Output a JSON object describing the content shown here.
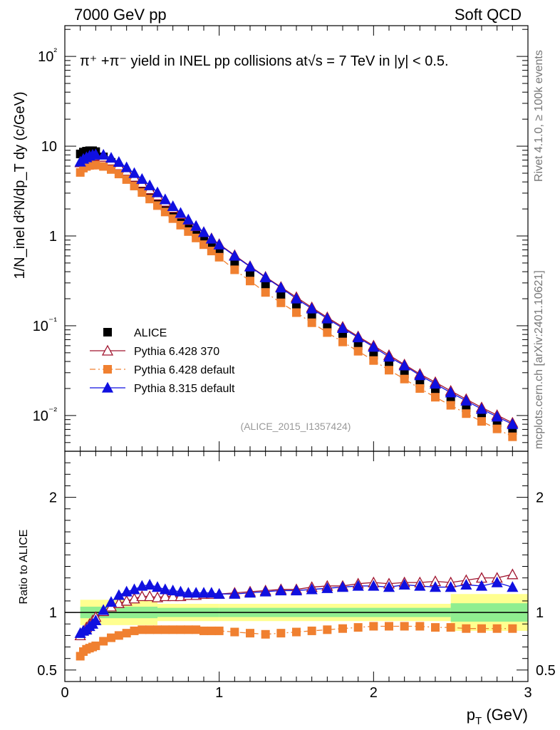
{
  "header": {
    "left": "7000 GeV pp",
    "right": "Soft QCD"
  },
  "side_labels": {
    "rivet": "Rivet 4.1.0, ≥ 100k events",
    "mcplots": "mcplots.cern.ch [arXiv:2401.10621]"
  },
  "chart_data": [
    {
      "type": "scatter",
      "panel": "main",
      "title": "π⁺ +π⁻ yield in INEL pp collisions at√s = 7 TeV in |y| < 0.5.",
      "ylabel": "1/N_inel d²N/dp_T dy (c/GeV)",
      "xlabel": "p_T (GeV)",
      "xlim": [
        0,
        3
      ],
      "ylim": [
        0.004,
        220
      ],
      "yscale": "log",
      "x_ticks": [
        "0",
        "1",
        "2",
        "3"
      ],
      "y_ticks": [
        "10⁻²",
        "10⁻¹",
        "1",
        "10",
        "10²"
      ],
      "watermark": "(ALICE_2015_I1357424)",
      "legend_position": "middle-left",
      "x": [
        0.1,
        0.12,
        0.14,
        0.16,
        0.18,
        0.2,
        0.25,
        0.3,
        0.35,
        0.4,
        0.45,
        0.5,
        0.55,
        0.6,
        0.65,
        0.7,
        0.75,
        0.8,
        0.85,
        0.9,
        0.95,
        1.0,
        1.1,
        1.2,
        1.3,
        1.4,
        1.5,
        1.6,
        1.7,
        1.8,
        1.9,
        2.0,
        2.1,
        2.2,
        2.3,
        2.4,
        2.5,
        2.6,
        2.7,
        2.8,
        2.9
      ],
      "series": [
        {
          "name": "ALICE",
          "marker": "square",
          "color": "#000000",
          "line": "none",
          "values": [
            8.2,
            8.6,
            8.8,
            8.9,
            8.9,
            8.7,
            7.6,
            6.6,
            5.7,
            4.9,
            4.1,
            3.5,
            2.95,
            2.5,
            2.12,
            1.8,
            1.53,
            1.3,
            1.1,
            0.94,
            0.8,
            0.69,
            0.51,
            0.385,
            0.29,
            0.22,
            0.168,
            0.128,
            0.099,
            0.077,
            0.06,
            0.047,
            0.037,
            0.029,
            0.023,
            0.0185,
            0.015,
            0.0122,
            0.01,
            0.0083,
            0.0068
          ]
        },
        {
          "name": "Pythia 6.428 370",
          "marker": "open-triangle",
          "color": "#a0142f",
          "line": "solid",
          "values": [
            6.6,
            7.0,
            7.3,
            7.55,
            7.7,
            7.8,
            7.6,
            6.9,
            6.1,
            5.3,
            4.55,
            3.9,
            3.3,
            2.82,
            2.4,
            2.05,
            1.75,
            1.5,
            1.28,
            1.1,
            0.94,
            0.81,
            0.61,
            0.46,
            0.35,
            0.27,
            0.208,
            0.16,
            0.124,
            0.097,
            0.076,
            0.06,
            0.047,
            0.037,
            0.029,
            0.0235,
            0.0188,
            0.0152,
            0.0123,
            0.0101,
            0.0083
          ]
        },
        {
          "name": "Pythia 6.428 default",
          "marker": "square",
          "color": "#f08030",
          "line": "dash-dot",
          "values": [
            5.1,
            5.7,
            5.95,
            6.1,
            6.15,
            6.15,
            5.95,
            5.5,
            4.9,
            4.25,
            3.6,
            3.05,
            2.58,
            2.18,
            1.85,
            1.56,
            1.32,
            1.12,
            0.95,
            0.8,
            0.68,
            0.58,
            0.42,
            0.315,
            0.235,
            0.18,
            0.14,
            0.108,
            0.084,
            0.066,
            0.052,
            0.041,
            0.032,
            0.0255,
            0.02,
            0.016,
            0.013,
            0.0105,
            0.0086,
            0.0071,
            0.0058
          ]
        },
        {
          "name": "Pythia 8.315 default",
          "marker": "triangle",
          "color": "#1010e0",
          "line": "solid",
          "values": [
            6.7,
            7.2,
            7.5,
            7.8,
            8.0,
            8.1,
            8.0,
            7.4,
            6.65,
            5.8,
            5.0,
            4.3,
            3.65,
            3.05,
            2.55,
            2.14,
            1.8,
            1.52,
            1.29,
            1.1,
            0.93,
            0.8,
            0.6,
            0.455,
            0.345,
            0.265,
            0.2,
            0.155,
            0.12,
            0.094,
            0.074,
            0.058,
            0.045,
            0.036,
            0.028,
            0.0225,
            0.018,
            0.0146,
            0.0118,
            0.0097,
            0.008
          ]
        }
      ],
      "legend": [
        "ALICE",
        "Pythia 6.428 370",
        "Pythia 6.428 default",
        "Pythia 8.315 default"
      ]
    },
    {
      "type": "scatter",
      "panel": "ratio",
      "ylabel": "Ratio to ALICE",
      "xlabel": "p_T (GeV)",
      "xlim": [
        0,
        3
      ],
      "ylim": [
        0.4,
        2.4
      ],
      "x_ticks": [
        "0",
        "1",
        "2",
        "3"
      ],
      "y_ticks": [
        "0.5",
        "1",
        "2"
      ],
      "reference_line": 1,
      "uncertainty_bands": [
        {
          "name": "stat",
          "color": "#90ee90",
          "segments": [
            {
              "x": [
                0.1,
                0.6
              ],
              "lo": 0.95,
              "hi": 1.05
            },
            {
              "x": [
                0.6,
                1.0
              ],
              "lo": 0.96,
              "hi": 1.04
            },
            {
              "x": [
                1.0,
                2.5
              ],
              "lo": 0.96,
              "hi": 1.04
            },
            {
              "x": [
                2.5,
                3.0
              ],
              "lo": 0.92,
              "hi": 1.08
            }
          ]
        },
        {
          "name": "syst",
          "color": "#ffff90",
          "segments": [
            {
              "x": [
                0.1,
                0.6
              ],
              "lo": 0.89,
              "hi": 1.11
            },
            {
              "x": [
                0.6,
                1.0
              ],
              "lo": 0.925,
              "hi": 1.075
            },
            {
              "x": [
                1.0,
                2.5
              ],
              "lo": 0.925,
              "hi": 1.075
            },
            {
              "x": [
                2.5,
                3.0
              ],
              "lo": 0.84,
              "hi": 1.16
            }
          ]
        }
      ],
      "x": [
        0.1,
        0.12,
        0.14,
        0.16,
        0.18,
        0.2,
        0.25,
        0.3,
        0.35,
        0.4,
        0.45,
        0.5,
        0.55,
        0.6,
        0.65,
        0.7,
        0.75,
        0.8,
        0.85,
        0.9,
        0.95,
        1.0,
        1.1,
        1.2,
        1.3,
        1.4,
        1.5,
        1.6,
        1.7,
        1.8,
        1.9,
        2.0,
        2.1,
        2.2,
        2.3,
        2.4,
        2.5,
        2.6,
        2.7,
        2.8,
        2.9
      ],
      "series": [
        {
          "name": "Pythia 6.428 370",
          "marker": "open-triangle",
          "color": "#a0142f",
          "line": "solid",
          "values": [
            0.8,
            0.84,
            0.87,
            0.9,
            0.93,
            0.96,
            1.01,
            1.05,
            1.08,
            1.1,
            1.12,
            1.14,
            1.14,
            1.13,
            1.14,
            1.14,
            1.14,
            1.15,
            1.15,
            1.16,
            1.16,
            1.16,
            1.17,
            1.18,
            1.19,
            1.2,
            1.2,
            1.22,
            1.23,
            1.23,
            1.25,
            1.26,
            1.25,
            1.26,
            1.26,
            1.27,
            1.26,
            1.28,
            1.3,
            1.3,
            1.33
          ]
        },
        {
          "name": "Pythia 6.428 default",
          "marker": "square",
          "color": "#f08030",
          "line": "dash-dot",
          "values": [
            0.62,
            0.66,
            0.68,
            0.69,
            0.7,
            0.71,
            0.75,
            0.78,
            0.8,
            0.82,
            0.84,
            0.85,
            0.85,
            0.85,
            0.85,
            0.85,
            0.85,
            0.85,
            0.85,
            0.84,
            0.84,
            0.84,
            0.83,
            0.82,
            0.81,
            0.82,
            0.83,
            0.84,
            0.85,
            0.86,
            0.87,
            0.88,
            0.88,
            0.88,
            0.88,
            0.87,
            0.87,
            0.86,
            0.86,
            0.86,
            0.86
          ]
        },
        {
          "name": "Pythia 8.315 default",
          "marker": "triangle",
          "color": "#1010e0",
          "line": "solid",
          "values": [
            0.82,
            0.84,
            0.85,
            0.88,
            0.9,
            0.93,
            1.02,
            1.09,
            1.15,
            1.18,
            1.2,
            1.23,
            1.24,
            1.22,
            1.2,
            1.19,
            1.18,
            1.17,
            1.17,
            1.17,
            1.17,
            1.16,
            1.16,
            1.17,
            1.18,
            1.19,
            1.19,
            1.2,
            1.21,
            1.22,
            1.23,
            1.23,
            1.22,
            1.24,
            1.23,
            1.22,
            1.22,
            1.24,
            1.23,
            1.26,
            1.22
          ]
        }
      ]
    }
  ]
}
